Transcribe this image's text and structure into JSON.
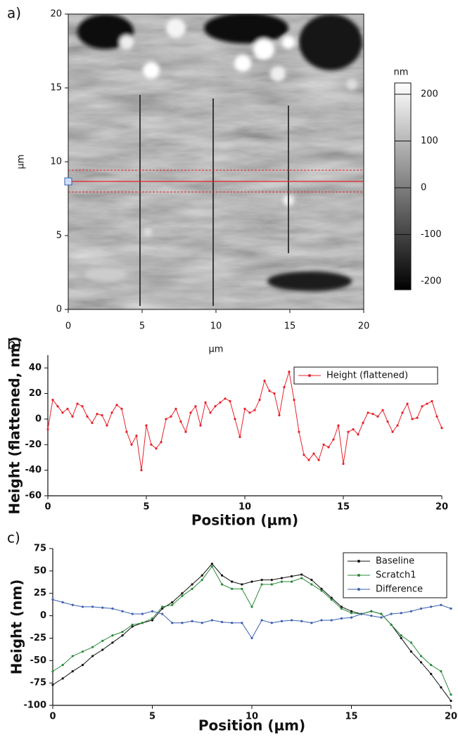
{
  "chart_data": [
    {
      "type": "image",
      "panel_label": "a)",
      "xlabel": "µm",
      "ylabel": "µm",
      "xlim": [
        0,
        20
      ],
      "ylim": [
        0,
        20
      ],
      "xticks": [
        0,
        5,
        10,
        15,
        20
      ],
      "yticks": [
        0,
        5,
        10,
        15,
        20
      ],
      "colorbar": {
        "label": "nm",
        "clim": [
          -218,
          224
        ],
        "ticks": [
          -200,
          -100,
          0,
          100,
          200
        ]
      }
    },
    {
      "type": "line",
      "panel_label": "b)",
      "xlabel": "Position (µm)",
      "ylabel": "Height (flattened, nm)",
      "xlim": [
        0,
        20
      ],
      "ylim": [
        -60,
        50
      ],
      "xticks": [
        0,
        5,
        10,
        15,
        20
      ],
      "yticks": [
        -60,
        -40,
        -20,
        0,
        20,
        40
      ],
      "legend": "upper right",
      "x": [
        0,
        0.25,
        0.5,
        0.75,
        1,
        1.25,
        1.5,
        1.75,
        2,
        2.25,
        2.5,
        2.75,
        3,
        3.25,
        3.5,
        3.75,
        4,
        4.25,
        4.5,
        4.75,
        5,
        5.25,
        5.5,
        5.75,
        6,
        6.25,
        6.5,
        6.75,
        7,
        7.25,
        7.5,
        7.75,
        8,
        8.25,
        8.5,
        8.75,
        9,
        9.25,
        9.5,
        9.75,
        10,
        10.25,
        10.5,
        10.75,
        11,
        11.25,
        11.5,
        11.75,
        12,
        12.25,
        12.5,
        12.75,
        13,
        13.25,
        13.5,
        13.75,
        14,
        14.25,
        14.5,
        14.75,
        15,
        15.25,
        15.5,
        15.75,
        16,
        16.25,
        16.5,
        16.75,
        17,
        17.25,
        17.5,
        17.75,
        18,
        18.25,
        18.5,
        18.75,
        19,
        19.25,
        19.5,
        19.75,
        20
      ],
      "series": [
        {
          "name": "Height (flattened)",
          "color": "#e8202a",
          "values": [
            -8,
            15,
            10,
            5,
            8,
            2,
            12,
            10,
            2,
            -3,
            4,
            3,
            -5,
            5,
            11,
            8,
            -10,
            -20,
            -13,
            -40,
            -5,
            -20,
            -23,
            -18,
            0,
            2,
            8,
            -2,
            -10,
            5,
            10,
            -5,
            13,
            5,
            10,
            13,
            16,
            14,
            0,
            -14,
            8,
            5,
            7,
            15,
            30,
            22,
            20,
            3,
            25,
            37,
            15,
            -10,
            -28,
            -32,
            -27,
            -32,
            -20,
            -22,
            -16,
            -5,
            -35,
            -10,
            -8,
            -12,
            -3,
            5,
            4,
            2,
            7,
            -2,
            -10,
            -5,
            5,
            12,
            0,
            1,
            10,
            12,
            14,
            2,
            -7
          ]
        }
      ]
    },
    {
      "type": "line",
      "panel_label": "c)",
      "xlabel": "Position (µm)",
      "ylabel": "Height (nm)",
      "xlim": [
        0,
        20
      ],
      "ylim": [
        -100,
        75
      ],
      "xticks": [
        0,
        5,
        10,
        15,
        20
      ],
      "yticks": [
        -100,
        -75,
        -50,
        -25,
        0,
        25,
        50,
        75
      ],
      "legend": "upper right",
      "x": [
        0,
        0.5,
        1,
        1.5,
        2,
        2.5,
        3,
        3.5,
        4,
        4.5,
        5,
        5.5,
        6,
        6.5,
        7,
        7.5,
        8,
        8.5,
        9,
        9.5,
        10,
        10.5,
        11,
        11.5,
        12,
        12.5,
        13,
        13.5,
        14,
        14.5,
        15,
        15.5,
        16,
        16.5,
        17,
        17.5,
        18,
        18.5,
        19,
        19.5,
        20
      ],
      "series": [
        {
          "name": "Baseline",
          "color": "#111111",
          "values": [
            -77,
            -70,
            -62,
            -55,
            -45,
            -38,
            -30,
            -22,
            -12,
            -8,
            -5,
            8,
            15,
            25,
            35,
            45,
            58,
            45,
            38,
            35,
            38,
            40,
            40,
            42,
            44,
            46,
            40,
            30,
            20,
            10,
            5,
            2,
            5,
            2,
            -10,
            -25,
            -40,
            -52,
            -65,
            -80,
            -95
          ]
        },
        {
          "name": "Scratch1",
          "color": "#2a8a3a",
          "values": [
            -62,
            -55,
            -45,
            -40,
            -35,
            -28,
            -22,
            -18,
            -10,
            -8,
            -3,
            10,
            12,
            22,
            30,
            40,
            55,
            35,
            30,
            30,
            10,
            35,
            35,
            38,
            38,
            42,
            35,
            28,
            18,
            8,
            3,
            2,
            5,
            2,
            -10,
            -22,
            -30,
            -45,
            -55,
            -62,
            -88
          ]
        },
        {
          "name": "Difference",
          "color": "#3a5fb0",
          "values": [
            18,
            15,
            12,
            10,
            10,
            9,
            8,
            5,
            2,
            2,
            5,
            2,
            -8,
            -8,
            -6,
            -8,
            -5,
            -7,
            -8,
            -8,
            -25,
            -5,
            -8,
            -6,
            -5,
            -6,
            -8,
            -5,
            -5,
            -3,
            -2,
            2,
            0,
            -2,
            2,
            3,
            5,
            8,
            10,
            12,
            8
          ]
        }
      ]
    }
  ]
}
